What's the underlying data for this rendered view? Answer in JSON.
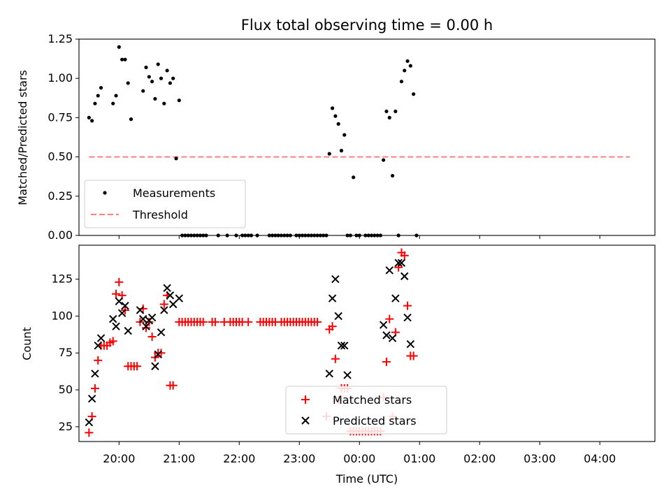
{
  "chart_data": [
    {
      "type": "scatter",
      "title": "Flux total observing time = 0.00 h",
      "xlabel": "",
      "ylabel": "Matched/Predicted stars",
      "x_unit": "time (UTC)",
      "xlim": [
        "19:20",
        "04:55"
      ],
      "ylim": [
        0,
        1.25
      ],
      "yticks": [
        "0.00",
        "0.25",
        "0.50",
        "0.75",
        "1.00",
        "1.25"
      ],
      "legend_position": "lower-left",
      "threshold": {
        "name": "Threshold",
        "value": 0.5,
        "x_range": [
          "19:30",
          "04:30"
        ],
        "color": "#ff7f7f",
        "style": "dashed"
      },
      "series": [
        {
          "name": "Measurements",
          "marker": "dot",
          "color": "#000000",
          "points": [
            [
              "19:30",
              0.75
            ],
            [
              "19:33",
              0.73
            ],
            [
              "19:36",
              0.84
            ],
            [
              "19:39",
              0.89
            ],
            [
              "19:42",
              0.94
            ],
            [
              "19:54",
              0.84
            ],
            [
              "19:57",
              0.89
            ],
            [
              "20:00",
              1.2
            ],
            [
              "20:03",
              1.12
            ],
            [
              "20:06",
              1.12
            ],
            [
              "20:09",
              0.97
            ],
            [
              "20:12",
              0.74
            ],
            [
              "20:24",
              0.92
            ],
            [
              "20:27",
              1.07
            ],
            [
              "20:30",
              1.01
            ],
            [
              "20:33",
              0.98
            ],
            [
              "20:36",
              0.87
            ],
            [
              "20:39",
              1.09
            ],
            [
              "20:42",
              1.0
            ],
            [
              "20:45",
              0.84
            ],
            [
              "20:48",
              1.05
            ],
            [
              "20:51",
              0.97
            ],
            [
              "20:54",
              1.0
            ],
            [
              "20:57",
              0.49
            ],
            [
              "21:00",
              0.86
            ],
            [
              "21:03",
              0.0
            ],
            [
              "21:06",
              0.0
            ],
            [
              "21:09",
              0.0
            ],
            [
              "21:12",
              0.0
            ],
            [
              "21:15",
              0.0
            ],
            [
              "21:18",
              0.0
            ],
            [
              "21:21",
              0.0
            ],
            [
              "21:24",
              0.0
            ],
            [
              "21:27",
              0.0
            ],
            [
              "21:39",
              0.0
            ],
            [
              "21:48",
              0.0
            ],
            [
              "21:57",
              0.0
            ],
            [
              "22:03",
              0.0
            ],
            [
              "22:06",
              0.0
            ],
            [
              "22:09",
              0.0
            ],
            [
              "22:12",
              0.0
            ],
            [
              "22:18",
              0.0
            ],
            [
              "22:30",
              0.0
            ],
            [
              "22:33",
              0.0
            ],
            [
              "22:36",
              0.0
            ],
            [
              "22:39",
              0.0
            ],
            [
              "22:42",
              0.0
            ],
            [
              "22:45",
              0.0
            ],
            [
              "22:48",
              0.0
            ],
            [
              "22:51",
              0.0
            ],
            [
              "22:57",
              0.0
            ],
            [
              "23:00",
              0.0
            ],
            [
              "23:03",
              0.0
            ],
            [
              "23:06",
              0.0
            ],
            [
              "23:09",
              0.0
            ],
            [
              "23:12",
              0.0
            ],
            [
              "23:15",
              0.0
            ],
            [
              "23:18",
              0.0
            ],
            [
              "23:21",
              0.0
            ],
            [
              "23:24",
              0.0
            ],
            [
              "23:27",
              0.0
            ],
            [
              "23:30",
              0.52
            ],
            [
              "23:33",
              0.81
            ],
            [
              "23:36",
              0.76
            ],
            [
              "23:39",
              0.71
            ],
            [
              "23:42",
              0.54
            ],
            [
              "23:45",
              0.64
            ],
            [
              "23:48",
              0.0
            ],
            [
              "23:51",
              0.0
            ],
            [
              "23:54",
              0.37
            ],
            [
              "23:57",
              0.0
            ],
            [
              "24:00",
              0.0
            ],
            [
              "24:06",
              0.0
            ],
            [
              "24:09",
              0.0
            ],
            [
              "24:12",
              0.0
            ],
            [
              "24:15",
              0.0
            ],
            [
              "24:18",
              0.0
            ],
            [
              "24:21",
              0.0
            ],
            [
              "24:24",
              0.48
            ],
            [
              "24:27",
              0.79
            ],
            [
              "24:30",
              0.75
            ],
            [
              "24:33",
              0.38
            ],
            [
              "24:36",
              0.79
            ],
            [
              "24:39",
              0.0
            ],
            [
              "24:42",
              0.98
            ],
            [
              "24:45",
              1.05
            ],
            [
              "24:48",
              1.11
            ],
            [
              "24:51",
              1.08
            ],
            [
              "24:54",
              0.9
            ],
            [
              "24:57",
              0.0
            ]
          ]
        }
      ]
    },
    {
      "type": "scatter",
      "title": "",
      "xlabel": "Time (UTC)",
      "ylabel": "Count",
      "xlim": [
        "19:20",
        "04:55"
      ],
      "xticks": [
        "20:00",
        "21:00",
        "22:00",
        "23:00",
        "00:00",
        "01:00",
        "02:00",
        "03:00",
        "04:00"
      ],
      "ylim": [
        15,
        148
      ],
      "yticks": [
        "25",
        "50",
        "75",
        "100",
        "125"
      ],
      "legend_position": "lower-center",
      "series": [
        {
          "name": "Matched stars",
          "marker": "plus",
          "color": "#ff0000",
          "points": [
            [
              "19:30",
              21
            ],
            [
              "19:33",
              32
            ],
            [
              "19:36",
              51
            ],
            [
              "19:39",
              70
            ],
            [
              "19:42",
              80
            ],
            [
              "19:45",
              80
            ],
            [
              "19:48",
              80
            ],
            [
              "19:51",
              82
            ],
            [
              "19:54",
              83
            ],
            [
              "19:57",
              115
            ],
            [
              "20:00",
              123
            ],
            [
              "20:03",
              114
            ],
            [
              "20:06",
              104
            ],
            [
              "20:09",
              66
            ],
            [
              "20:12",
              66
            ],
            [
              "20:15",
              66
            ],
            [
              "20:18",
              66
            ],
            [
              "20:21",
              96
            ],
            [
              "20:24",
              105
            ],
            [
              "20:27",
              92
            ],
            [
              "20:30",
              96
            ],
            [
              "20:33",
              86
            ],
            [
              "20:36",
              72
            ],
            [
              "20:39",
              75
            ],
            [
              "20:42",
              75
            ],
            [
              "20:45",
              108
            ],
            [
              "20:48",
              114
            ],
            [
              "20:51",
              53
            ],
            [
              "20:54",
              53
            ],
            [
              "21:00",
              96
            ],
            [
              "21:03",
              96
            ],
            [
              "21:06",
              96
            ],
            [
              "21:09",
              96
            ],
            [
              "21:12",
              96
            ],
            [
              "21:15",
              96
            ],
            [
              "21:18",
              96
            ],
            [
              "21:21",
              96
            ],
            [
              "21:24",
              96
            ],
            [
              "21:33",
              96
            ],
            [
              "21:36",
              96
            ],
            [
              "21:45",
              96
            ],
            [
              "21:51",
              96
            ],
            [
              "21:54",
              96
            ],
            [
              "21:57",
              96
            ],
            [
              "22:00",
              96
            ],
            [
              "22:03",
              96
            ],
            [
              "22:09",
              96
            ],
            [
              "22:21",
              96
            ],
            [
              "22:24",
              96
            ],
            [
              "22:27",
              96
            ],
            [
              "22:30",
              96
            ],
            [
              "22:33",
              96
            ],
            [
              "22:36",
              96
            ],
            [
              "22:42",
              96
            ],
            [
              "22:45",
              96
            ],
            [
              "22:48",
              96
            ],
            [
              "22:51",
              96
            ],
            [
              "22:54",
              96
            ],
            [
              "22:57",
              96
            ],
            [
              "23:00",
              96
            ],
            [
              "23:03",
              96
            ],
            [
              "23:06",
              96
            ],
            [
              "23:09",
              96
            ],
            [
              "23:12",
              96
            ],
            [
              "23:15",
              96
            ],
            [
              "23:18",
              96
            ],
            [
              "23:27",
              32
            ],
            [
              "23:30",
              91
            ],
            [
              "23:33",
              93
            ],
            [
              "23:36",
              71
            ],
            [
              "23:39",
              43
            ],
            [
              "23:42",
              51
            ],
            [
              "23:45",
              51
            ],
            [
              "23:48",
              51
            ],
            [
              "23:51",
              22
            ],
            [
              "23:54",
              22
            ],
            [
              "23:57",
              22
            ],
            [
              "24:00",
              22
            ],
            [
              "24:03",
              22
            ],
            [
              "24:06",
              22
            ],
            [
              "24:09",
              22
            ],
            [
              "24:12",
              22
            ],
            [
              "24:15",
              22
            ],
            [
              "24:18",
              22
            ],
            [
              "24:21",
              22
            ],
            [
              "24:24",
              45
            ],
            [
              "24:27",
              69
            ],
            [
              "24:30",
              98
            ],
            [
              "24:33",
              32
            ],
            [
              "24:36",
              89
            ],
            [
              "24:39",
              133
            ],
            [
              "24:42",
              143
            ],
            [
              "24:45",
              141
            ],
            [
              "24:48",
              107
            ],
            [
              "24:51",
              73
            ],
            [
              "24:54",
              73
            ]
          ]
        },
        {
          "name": "Predicted stars",
          "marker": "x",
          "color": "#000000",
          "points": [
            [
              "19:30",
              28
            ],
            [
              "19:33",
              44
            ],
            [
              "19:36",
              61
            ],
            [
              "19:39",
              80
            ],
            [
              "19:42",
              85
            ],
            [
              "19:54",
              98
            ],
            [
              "19:57",
              93
            ],
            [
              "20:00",
              110
            ],
            [
              "20:03",
              102
            ],
            [
              "20:06",
              107
            ],
            [
              "20:09",
              90
            ],
            [
              "20:21",
              104
            ],
            [
              "20:24",
              98
            ],
            [
              "20:27",
              93
            ],
            [
              "20:30",
              97
            ],
            [
              "20:33",
              99
            ],
            [
              "20:36",
              66
            ],
            [
              "20:39",
              74
            ],
            [
              "20:42",
              89
            ],
            [
              "20:45",
              104
            ],
            [
              "20:48",
              119
            ],
            [
              "20:51",
              114
            ],
            [
              "20:54",
              108
            ],
            [
              "21:00",
              112
            ],
            [
              "23:30",
              61
            ],
            [
              "23:33",
              112
            ],
            [
              "23:36",
              125
            ],
            [
              "23:39",
              100
            ],
            [
              "23:42",
              80
            ],
            [
              "23:45",
              80
            ],
            [
              "23:48",
              60
            ],
            [
              "24:24",
              94
            ],
            [
              "24:27",
              87
            ],
            [
              "24:30",
              131
            ],
            [
              "24:33",
              85
            ],
            [
              "24:36",
              112
            ],
            [
              "24:39",
              136
            ],
            [
              "24:42",
              136
            ],
            [
              "24:45",
              127
            ],
            [
              "24:48",
              99
            ],
            [
              "24:51",
              81
            ]
          ]
        }
      ]
    }
  ]
}
